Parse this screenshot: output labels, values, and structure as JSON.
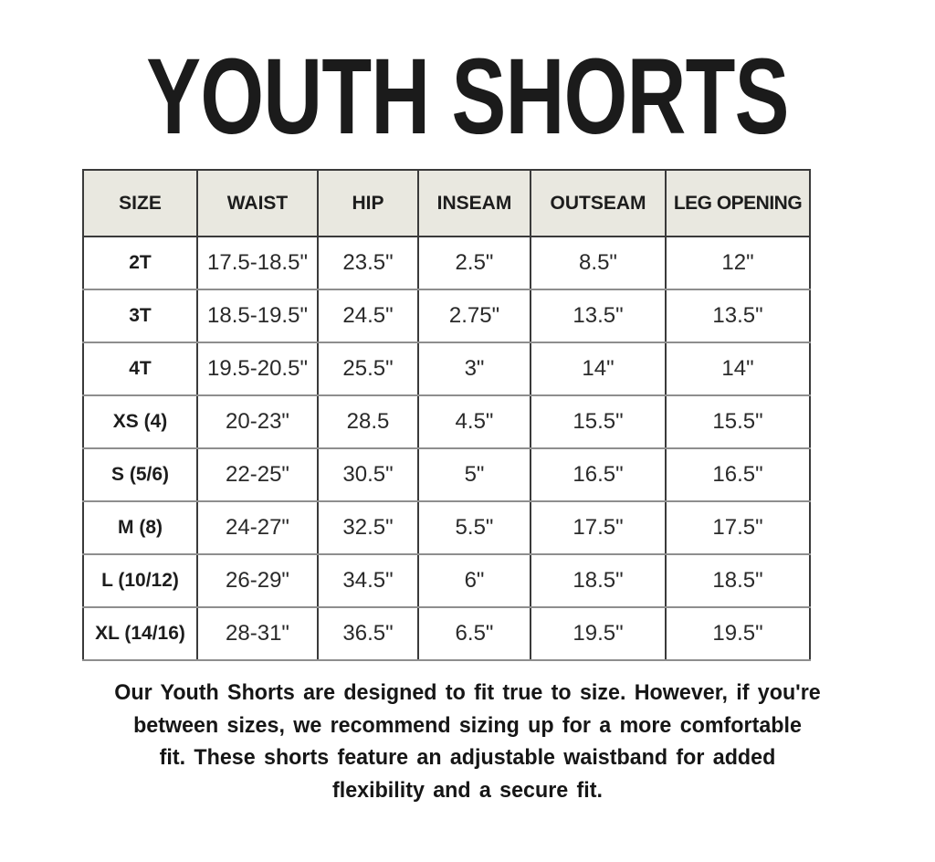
{
  "title": "YOUTH SHORTS",
  "table": {
    "headers": [
      "SIZE",
      "WAIST",
      "HIP",
      "INSEAM",
      "OUTSEAM",
      "LEG OPENING"
    ],
    "rows": [
      {
        "size": "2T",
        "waist": "17.5-18.5\"",
        "hip": "23.5\"",
        "inseam": "2.5\"",
        "outseam": "8.5\"",
        "leg_opening": "12\""
      },
      {
        "size": "3T",
        "waist": "18.5-19.5\"",
        "hip": "24.5\"",
        "inseam": "2.75\"",
        "outseam": "13.5\"",
        "leg_opening": "13.5\""
      },
      {
        "size": "4T",
        "waist": "19.5-20.5\"",
        "hip": "25.5\"",
        "inseam": "3\"",
        "outseam": "14\"",
        "leg_opening": "14\""
      },
      {
        "size": "XS (4)",
        "waist": "20-23\"",
        "hip": "28.5",
        "inseam": "4.5\"",
        "outseam": "15.5\"",
        "leg_opening": "15.5\""
      },
      {
        "size": "S (5/6)",
        "waist": "22-25\"",
        "hip": "30.5\"",
        "inseam": "5\"",
        "outseam": "16.5\"",
        "leg_opening": "16.5\""
      },
      {
        "size": "M (8)",
        "waist": "24-27\"",
        "hip": "32.5\"",
        "inseam": "5.5\"",
        "outseam": "17.5\"",
        "leg_opening": "17.5\""
      },
      {
        "size": "L (10/12)",
        "waist": "26-29\"",
        "hip": "34.5\"",
        "inseam": "6\"",
        "outseam": "18.5\"",
        "leg_opening": "18.5\""
      },
      {
        "size": "XL (14/16)",
        "waist": "28-31\"",
        "hip": "36.5\"",
        "inseam": "6.5\"",
        "outseam": "19.5\"",
        "leg_opening": "19.5\""
      }
    ]
  },
  "footer": {
    "lines": [
      "Our Youth Shorts are designed to fit true to size. However, if you're",
      "between sizes, we recommend sizing up for a more comfortable",
      "fit. These shorts feature an adjustable waistband for added",
      "flexibility and a secure fit."
    ]
  },
  "colors": {
    "header_background": "#e9e8e0",
    "border_dark": "#3a3a3a",
    "border_light": "#8e8e8e",
    "text": "#1b1b1b",
    "page_background": "#ffffff"
  }
}
